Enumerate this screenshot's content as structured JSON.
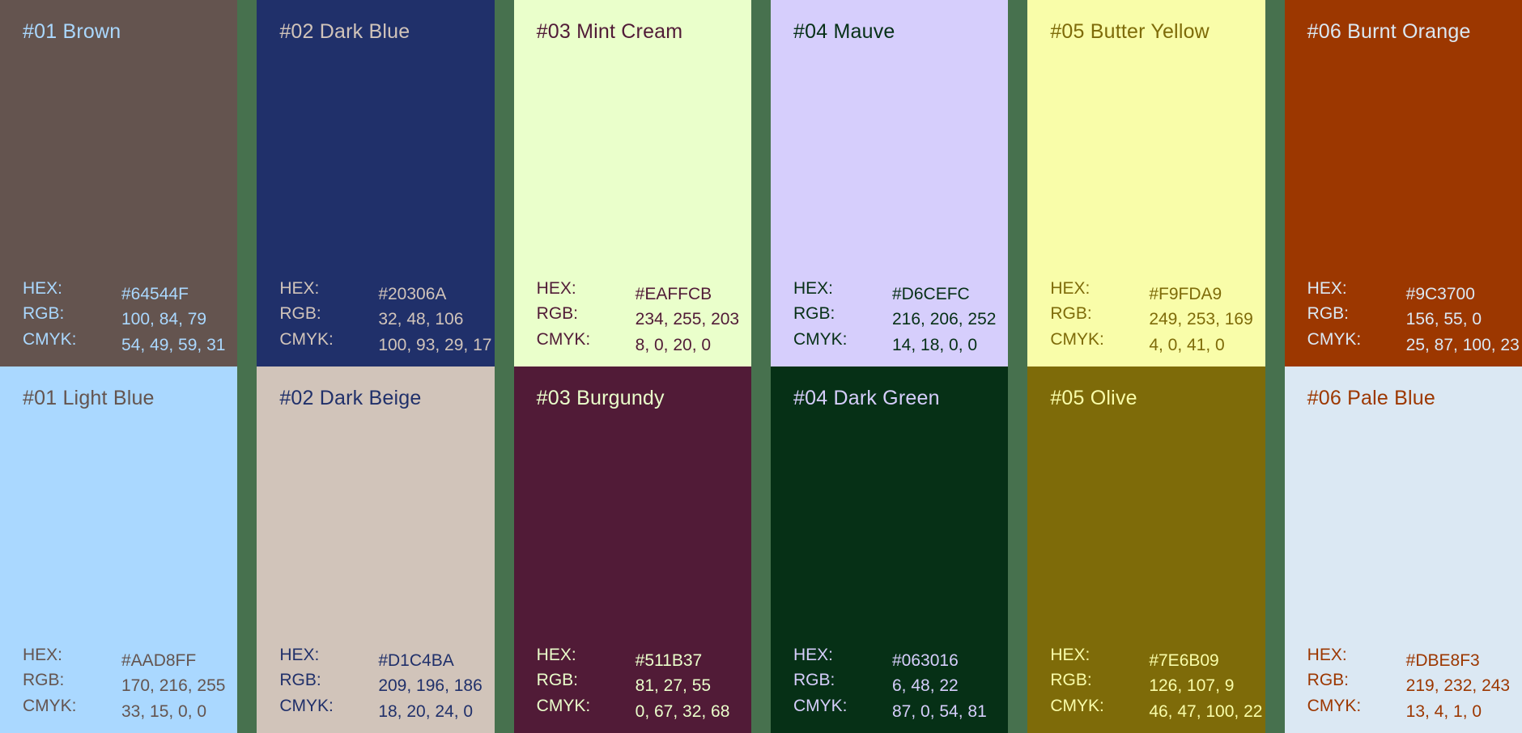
{
  "canvas": {
    "gutter_color": "#47714E",
    "guide_line_color": "#EFEBE0"
  },
  "labels": {
    "hex": "HEX:",
    "rgb": "RGB:",
    "cmyk": "CMYK:"
  },
  "cards": [
    {
      "title": "#01 Brown",
      "bg": "#64544F",
      "text_color": "#AAD8FF",
      "hex": "#64544F",
      "rgb": "100, 84, 79",
      "cmyk": "54, 49, 59, 31",
      "dashed_left_guide": false
    },
    {
      "title": "#02 Dark Blue",
      "bg": "#20306A",
      "text_color": "#D1C4BA",
      "hex": "#20306A",
      "rgb": "32, 48, 106",
      "cmyk": "100, 93, 29, 17",
      "dashed_left_guide": true
    },
    {
      "title": "#03 Mint Cream",
      "bg": "#EAFFCB",
      "text_color": "#511B37",
      "hex": "#EAFFCB",
      "rgb": "234, 255, 203",
      "cmyk": "8, 0, 20, 0",
      "dashed_left_guide": false
    },
    {
      "title": "#04 Mauve",
      "bg": "#D6CEFC",
      "text_color": "#063016",
      "hex": "#D6CEFC",
      "rgb": "216, 206, 252",
      "cmyk": "14, 18, 0, 0",
      "dashed_left_guide": false
    },
    {
      "title": "#05 Butter Yellow",
      "bg": "#F9FDA9",
      "text_color": "#7E6B09",
      "hex": "#F9FDA9",
      "rgb": "249, 253, 169",
      "cmyk": "4, 0, 41, 0",
      "dashed_left_guide": false
    },
    {
      "title": "#06 Burnt Orange",
      "bg": "#9C3700",
      "text_color": "#DBE8F3",
      "hex": "#9C3700",
      "rgb": "156, 55, 0",
      "cmyk": "25, 87, 100, 23",
      "dashed_left_guide": false
    },
    {
      "title": "#01 Light Blue",
      "bg": "#AAD8FF",
      "text_color": "#64544F",
      "hex": "#AAD8FF",
      "rgb": "170, 216, 255",
      "cmyk": "33, 15, 0, 0",
      "dashed_left_guide": false
    },
    {
      "title": "#02 Dark Beige",
      "bg": "#D1C4BA",
      "text_color": "#20306A",
      "hex": "#D1C4BA",
      "rgb": "209, 196, 186",
      "cmyk": "18, 20, 24, 0",
      "dashed_left_guide": false
    },
    {
      "title": "#03 Burgundy",
      "bg": "#511B37",
      "text_color": "#EAFFCB",
      "hex": "#511B37",
      "rgb": "81, 27, 55",
      "cmyk": "0, 67, 32, 68",
      "dashed_left_guide": false
    },
    {
      "title": "#04 Dark Green",
      "bg": "#063016",
      "text_color": "#D6CEFC",
      "hex": "#063016",
      "rgb": "6, 48, 22",
      "cmyk": "87, 0, 54, 81",
      "dashed_left_guide": false
    },
    {
      "title": "#05 Olive",
      "bg": "#7E6B09",
      "text_color": "#F9FDA9",
      "hex": "#7E6B09",
      "rgb": "126, 107, 9",
      "cmyk": "46, 47, 100, 22",
      "dashed_left_guide": false
    },
    {
      "title": "#06 Pale Blue",
      "bg": "#DBE8F3",
      "text_color": "#9C3700",
      "hex": "#DBE8F3",
      "rgb": "219, 232, 243",
      "cmyk": "13, 4, 1, 0",
      "dashed_left_guide": false
    }
  ]
}
